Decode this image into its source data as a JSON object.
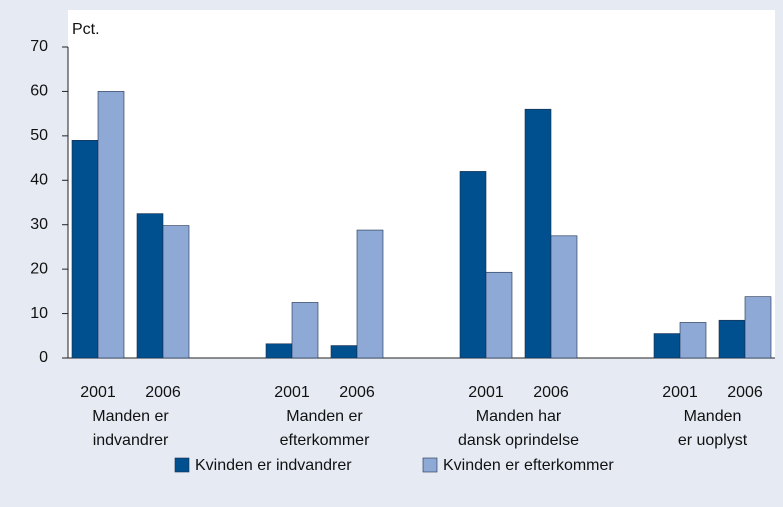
{
  "chart_data": {
    "type": "bar",
    "y_label": "Pct.",
    "categories": [
      "2001",
      "2006",
      "2001",
      "2006",
      "2001",
      "2006",
      "2001",
      "2006"
    ],
    "groups": [
      [
        "Manden er",
        "indvandrer"
      ],
      [
        "Manden er",
        "efterkommer"
      ],
      [
        "Manden har",
        "dansk oprindelse"
      ],
      [
        "Manden",
        "er uoplyst"
      ]
    ],
    "series": [
      {
        "name": "Kvinden er indvandrer",
        "color": "#00508f",
        "values": [
          49,
          32.5,
          3.2,
          2.8,
          42,
          56,
          5.5,
          8.5
        ]
      },
      {
        "name": "Kvinden er efterkommer",
        "color": "#8fa9d7",
        "values": [
          60,
          29.8,
          12.5,
          28.8,
          19.3,
          27.5,
          8,
          13.8
        ]
      }
    ],
    "ylim": [
      0,
      70
    ],
    "yticks": [
      0,
      10,
      20,
      30,
      40,
      50,
      60,
      70
    ],
    "legend": "bottom"
  }
}
